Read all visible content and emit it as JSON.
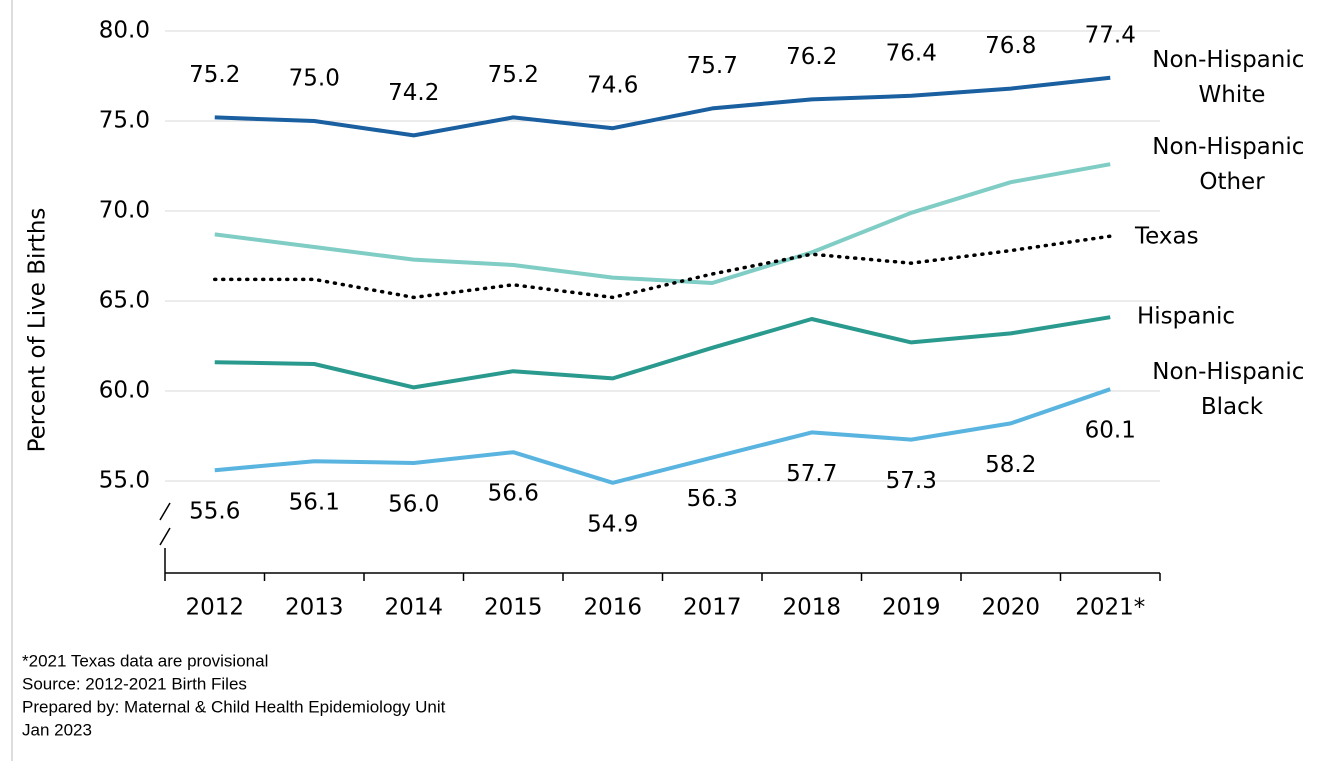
{
  "chart_data": {
    "type": "line",
    "y_label": "Percent of Live Births",
    "categories": [
      "2012",
      "2013",
      "2014",
      "2015",
      "2016",
      "2017",
      "2018",
      "2019",
      "2020",
      "2021*"
    ],
    "ylim": [
      50,
      80
    ],
    "yticks": [
      {
        "value": 55,
        "label": "55.0"
      },
      {
        "value": 60,
        "label": "60.0"
      },
      {
        "value": 65,
        "label": "65.0"
      },
      {
        "value": 70,
        "label": "70.0"
      },
      {
        "value": 75,
        "label": "75.0"
      },
      {
        "value": 80,
        "label": "80.0"
      }
    ],
    "grid": true,
    "series": [
      {
        "name": "Non-Hispanic White",
        "color": "#1a5fa0",
        "values": [
          75.2,
          75.0,
          74.2,
          75.2,
          74.6,
          75.7,
          76.2,
          76.4,
          76.8,
          77.4
        ],
        "value_labels": [
          "75.2",
          "75.0",
          "74.2",
          "75.2",
          "74.6",
          "75.7",
          "76.2",
          "76.4",
          "76.8",
          "77.4"
        ]
      },
      {
        "name": "Non-Hispanic Other",
        "color": "#7fcdc4",
        "values": [
          68.7,
          68.0,
          67.3,
          67.0,
          66.3,
          66.0,
          67.7,
          69.9,
          71.6,
          72.6
        ]
      },
      {
        "name": "Texas",
        "color": "#000000",
        "style": "dotted",
        "values": [
          66.2,
          66.2,
          65.2,
          65.9,
          65.2,
          66.5,
          67.6,
          67.1,
          67.8,
          68.6
        ]
      },
      {
        "name": "Hispanic",
        "color": "#2a9a8e",
        "values": [
          61.6,
          61.5,
          60.2,
          61.1,
          60.7,
          62.4,
          64.0,
          62.7,
          63.2,
          64.1
        ]
      },
      {
        "name": "Non-Hispanic Black",
        "color": "#5ab4e0",
        "values": [
          55.6,
          56.1,
          56.0,
          56.6,
          54.9,
          56.3,
          57.7,
          57.3,
          58.2,
          60.1
        ],
        "value_labels": [
          "55.6",
          "56.1",
          "56.0",
          "56.6",
          "54.9",
          "56.3",
          "57.7",
          "57.3",
          "58.2",
          "60.1"
        ]
      }
    ],
    "notes": [
      "*2021 Texas data are provisional",
      "Source: 2012-2021 Birth Files",
      "Prepared by: Maternal & Child Health Epidemiology Unit",
      "Jan 2023"
    ]
  }
}
